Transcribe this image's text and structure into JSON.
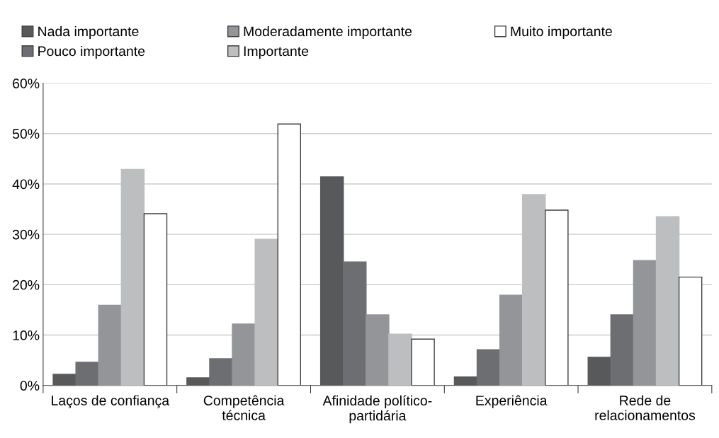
{
  "chart_data": {
    "type": "bar",
    "categories": [
      "Laços de confiança",
      "Competência\ntécnica",
      "Afinidade político-\npartidária",
      "Experiência",
      "Rede de\nrelacionamentos"
    ],
    "series": [
      {
        "name": "Nada importante",
        "color": "#58595b",
        "values": [
          2.2,
          1.5,
          41.4,
          1.7,
          5.6
        ]
      },
      {
        "name": "Pouco importante",
        "color": "#6d6e71",
        "values": [
          4.6,
          5.3,
          24.5,
          7.1,
          14.0
        ]
      },
      {
        "name": "Moderadamente importante",
        "color": "#939598",
        "values": [
          15.9,
          12.2,
          14.0,
          17.9,
          24.8
        ]
      },
      {
        "name": "Importante",
        "color": "#bcbec0",
        "values": [
          42.9,
          29.0,
          10.2,
          37.9,
          33.5
        ]
      },
      {
        "name": "Muito importante",
        "color": "#ffffff",
        "values": [
          34.1,
          51.9,
          9.2,
          34.8,
          21.5
        ]
      }
    ],
    "ylim": [
      0,
      60
    ],
    "yticks": [
      {
        "value": 0,
        "label": "0%"
      },
      {
        "value": 10,
        "label": "10%"
      },
      {
        "value": 20,
        "label": "20%"
      },
      {
        "value": 30,
        "label": "30%"
      },
      {
        "value": 40,
        "label": "40%"
      },
      {
        "value": 50,
        "label": "50%"
      },
      {
        "value": 60,
        "label": "60%"
      }
    ],
    "grid": "y",
    "legend": "top"
  }
}
